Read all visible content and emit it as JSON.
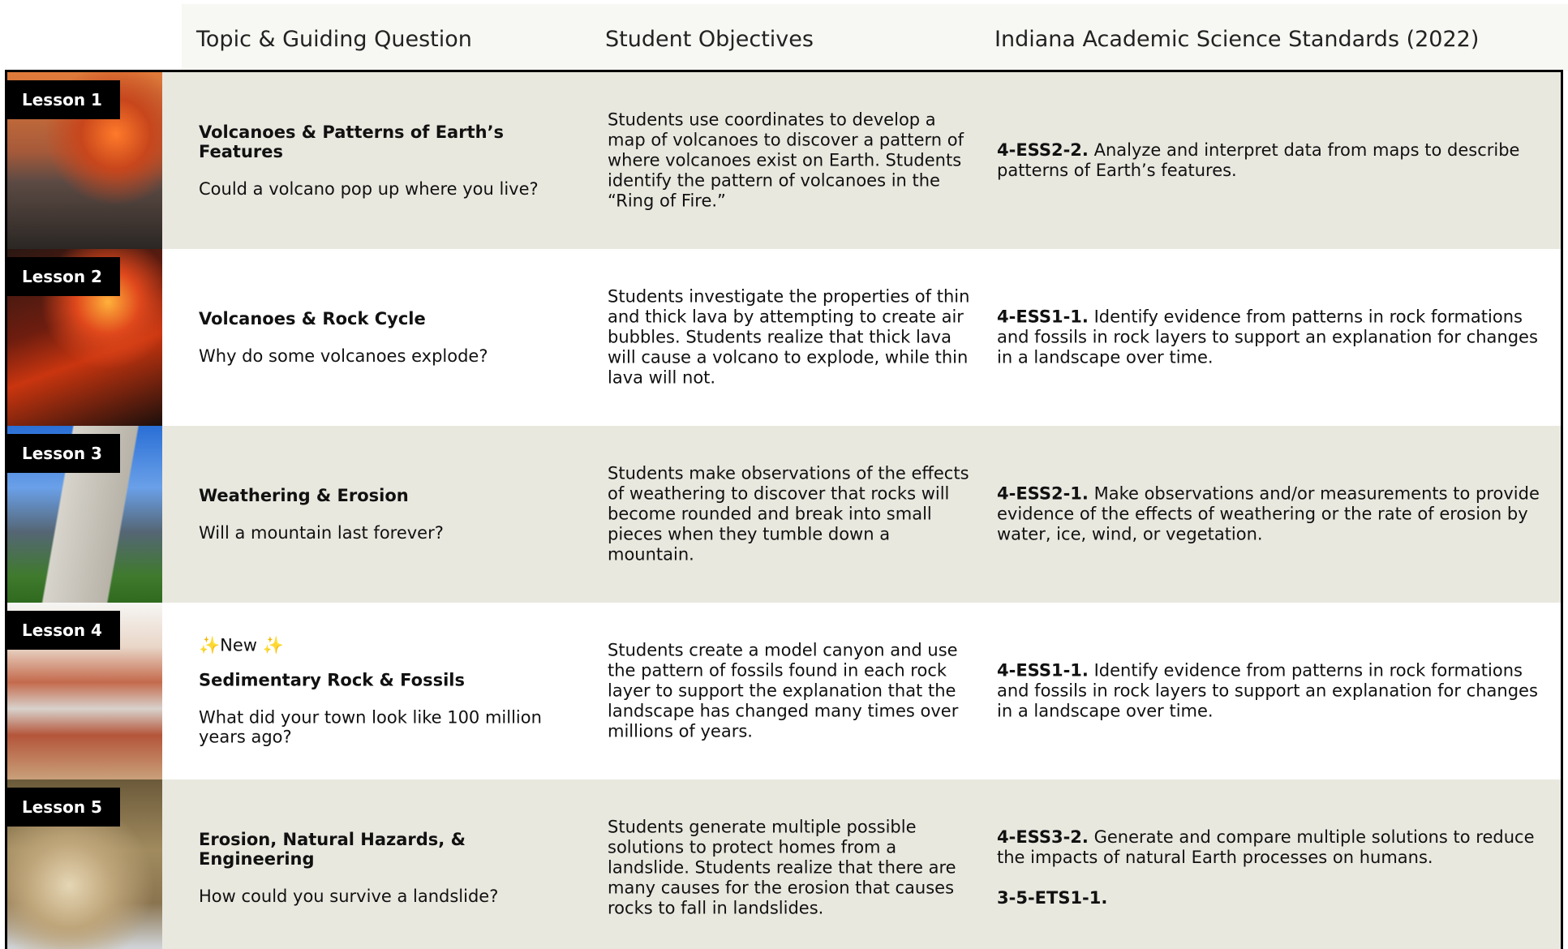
{
  "header": {
    "columns": [
      "Topic & Guiding Question",
      "Student Objectives",
      "Indiana Academic Science Standards (2022)"
    ]
  },
  "rows": [
    {
      "lesson": "Lesson 1",
      "topic": "Volcanoes & Patterns of Earth’s Features",
      "question": "Could a volcano pop up where you live?",
      "objectives": "Students use coordinates to develop a map of volcanoes to discover a pattern of where volcanoes exist on Earth. Students identify the pattern of volcanoes in the “Ring of Fire.”",
      "standards": [
        {
          "code": "4-ESS2-2.",
          "text": "Analyze and interpret data from maps to describe patterns of Earth’s features."
        }
      ]
    },
    {
      "lesson": "Lesson 2",
      "topic": "Volcanoes & Rock Cycle",
      "question": "Why do some volcanoes explode?",
      "objectives": "Students investigate the properties of thin and thick lava by attempting to create air bubbles. Students realize that thick lava will cause a volcano to explode, while thin lava will not.",
      "standards": [
        {
          "code": "4-ESS1-1.",
          "text": "Identify evidence from patterns in rock formations and fossils in rock layers to support an explanation for changes in a landscape over time."
        }
      ]
    },
    {
      "lesson": "Lesson 3",
      "topic": "Weathering & Erosion",
      "question": "Will a mountain last forever?",
      "objectives": "Students make observations of the effects of weathering to discover that rocks will become rounded and break into small pieces when they tumble down a mountain.",
      "standards": [
        {
          "code": "4-ESS2-1.",
          "text": "Make observations and/or measurements to provide evidence of the effects of weathering or the rate of erosion by water, ice, wind, or vegetation."
        }
      ]
    },
    {
      "lesson": "Lesson 4",
      "tag": "✨New ✨",
      "topic": "Sedimentary Rock & Fossils",
      "question": "What did your town look like 100 million years ago?",
      "objectives": "Students create a model canyon and use the pattern of fossils found in each rock layer to support the explanation that the landscape has changed many times over millions of years.",
      "standards": [
        {
          "code": "4-ESS1-1.",
          "text": "Identify evidence from patterns in rock formations and fossils in rock layers to support an explanation for changes in a landscape over time."
        }
      ]
    },
    {
      "lesson": "Lesson 5",
      "topic": "Erosion, Natural Hazards, & Engineering",
      "question": "How could you survive a landslide?",
      "objectives": "Students generate multiple possible solutions to protect homes from a landslide. Students realize that there are many causes for the erosion that causes rocks to fall in landslides.",
      "standards": [
        {
          "code": "4-ESS3-2.",
          "text": "Generate and compare multiple solutions to reduce the impacts of natural Earth processes on humans."
        },
        {
          "code": "3-5-ETS1-1."
        }
      ]
    }
  ]
}
